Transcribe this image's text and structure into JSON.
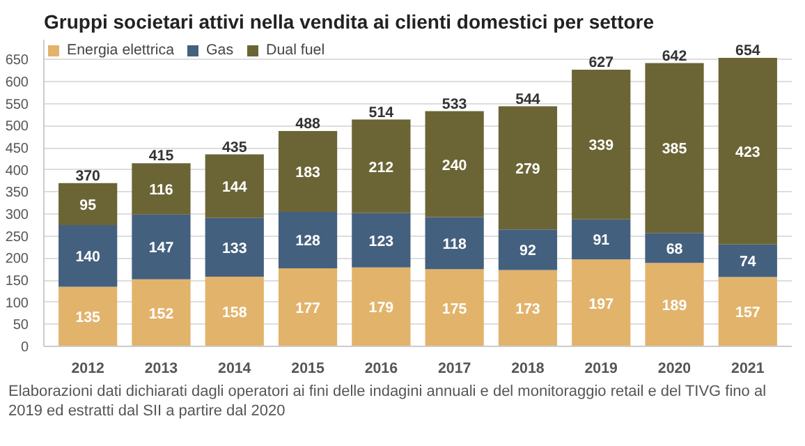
{
  "chart_data": {
    "type": "bar",
    "title": "Gruppi societari attivi nella vendita ai clienti domestici per settore",
    "categories": [
      "2012",
      "2013",
      "2014",
      "2015",
      "2016",
      "2017",
      "2018",
      "2019",
      "2020",
      "2021"
    ],
    "stacked": true,
    "series": [
      {
        "name": "Energia elettrica",
        "color": "#e2b36b",
        "values": [
          135,
          152,
          158,
          177,
          179,
          175,
          173,
          197,
          189,
          157
        ]
      },
      {
        "name": "Gas",
        "color": "#44607f",
        "values": [
          140,
          147,
          133,
          128,
          123,
          118,
          92,
          91,
          68,
          74
        ]
      },
      {
        "name": "Dual fuel",
        "color": "#6b6535",
        "values": [
          95,
          116,
          144,
          183,
          212,
          240,
          279,
          339,
          385,
          423
        ]
      }
    ],
    "totals": [
      "370",
      "415",
      "435",
      "488",
      "514",
      "533",
      "544",
      "627",
      "642",
      "654"
    ],
    "data_labels": true,
    "ylim": [
      0,
      695
    ],
    "yticks": [
      0,
      50,
      100,
      150,
      200,
      250,
      300,
      350,
      400,
      450,
      500,
      550,
      600,
      650
    ],
    "grid": "y",
    "legend": "top left",
    "annotations": [
      "Elaborazioni dati dichiarati dagli operatori ai fini delle indagini annuali e del monitoraggio retail e del TIVG fino al 2019 ed estratti dal SII a partire dal 2020"
    ]
  }
}
